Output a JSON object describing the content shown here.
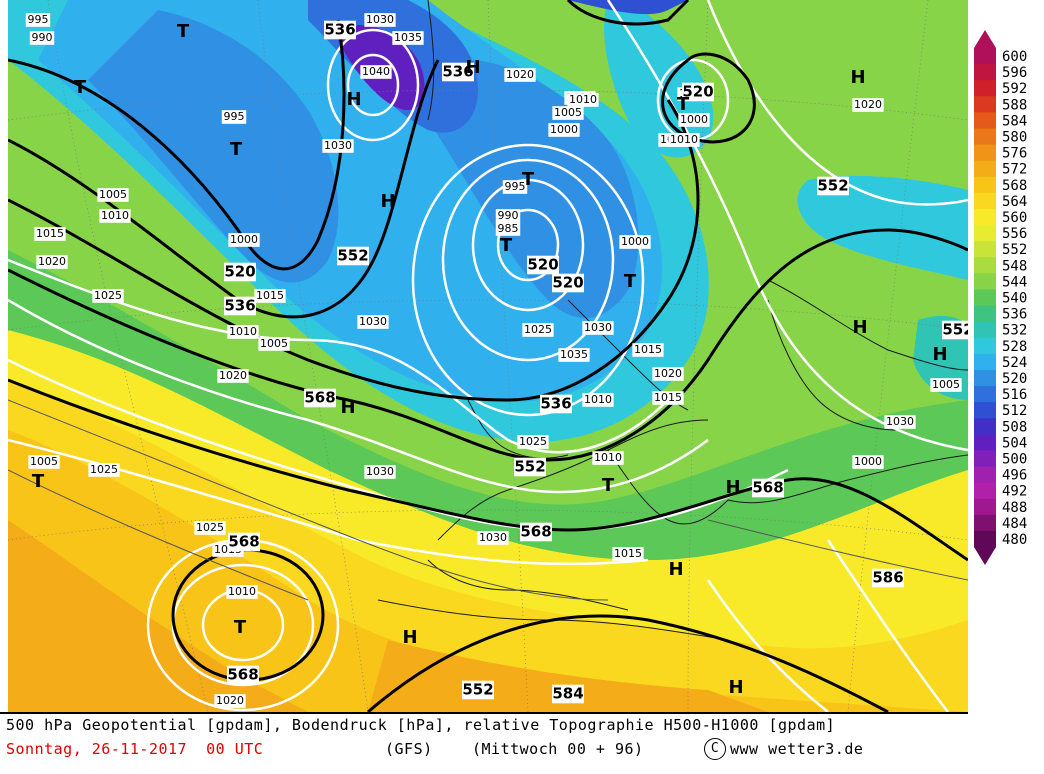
{
  "legend": {
    "values": [
      "600",
      "596",
      "592",
      "588",
      "584",
      "580",
      "576",
      "572",
      "568",
      "564",
      "560",
      "556",
      "552",
      "548",
      "544",
      "540",
      "536",
      "532",
      "528",
      "524",
      "520",
      "516",
      "512",
      "508",
      "504",
      "500",
      "496",
      "492",
      "488",
      "484",
      "480"
    ],
    "colors": [
      "#b0105a",
      "#c01540",
      "#d0202c",
      "#dc3a20",
      "#e55a1a",
      "#ea7818",
      "#ef9418",
      "#f4ac18",
      "#f8c418",
      "#fad820",
      "#f8ea28",
      "#e8ec30",
      "#c8e438",
      "#a8dc40",
      "#88d448",
      "#5cc858",
      "#3cc480",
      "#30c4b4",
      "#30c8dc",
      "#30b0ec",
      "#3090e4",
      "#3070dc",
      "#3050d4",
      "#4030c8",
      "#6020c0",
      "#8020b8",
      "#a020b0",
      "#b020a8",
      "#a01890",
      "#801070",
      "#600858"
    ]
  },
  "footer": {
    "line1": "500 hPa Geopotential [gpdam], Bodendruck [hPa], relative Topographie H500-H1000 [gpdam]",
    "date": "Sonntag, 26-11-2017  00 UTC",
    "model": "(GFS)",
    "forecast": "(Mittwoch 00 + 96)",
    "copyright_symbol": "C",
    "website": "www wetter3.de"
  },
  "map_labels": {
    "high_lows": [
      {
        "t": "T",
        "k": "low"
      },
      {
        "t": "T",
        "k": "low"
      },
      {
        "t": "T",
        "k": "low"
      },
      {
        "t": "H",
        "k": "high"
      },
      {
        "t": "H",
        "k": "high"
      },
      {
        "t": "H",
        "k": "high"
      },
      {
        "t": "T",
        "k": "low"
      },
      {
        "t": "T",
        "k": "low"
      },
      {
        "t": "T",
        "k": "low"
      },
      {
        "t": "T",
        "k": "low"
      },
      {
        "t": "H",
        "k": "high"
      },
      {
        "t": "H",
        "k": "high"
      },
      {
        "t": "H",
        "k": "high"
      },
      {
        "t": "H",
        "k": "high"
      },
      {
        "t": "H",
        "k": "high"
      },
      {
        "t": "T",
        "k": "low"
      },
      {
        "t": "T",
        "k": "low"
      },
      {
        "t": "T",
        "k": "low"
      },
      {
        "t": "H",
        "k": "high"
      },
      {
        "t": "H",
        "k": "high"
      },
      {
        "t": "H",
        "k": "high"
      },
      {
        "t": "T",
        "k": "low"
      }
    ],
    "geopotential": [
      "536",
      "536",
      "520",
      "536",
      "552",
      "520",
      "520",
      "520",
      "552",
      "568",
      "536",
      "552",
      "568",
      "568",
      "568",
      "568",
      "586",
      "584",
      "552",
      "552"
    ],
    "pressure": [
      "995",
      "990",
      "1030",
      "1035",
      "1040",
      "1020",
      "1010",
      "1005",
      "1000",
      "995",
      "990",
      "985",
      "1000",
      "995",
      "1030",
      "1000",
      "1005",
      "1010",
      "1005",
      "1010",
      "1015",
      "1020",
      "1025",
      "1015",
      "1030",
      "1025",
      "1030",
      "1035",
      "1015",
      "1020",
      "1015",
      "1010",
      "1005",
      "1010",
      "1020",
      "1025",
      "1005",
      "1030",
      "1010",
      "1015",
      "1020",
      "1005",
      "1010",
      "1015",
      "1025",
      "1030",
      "1030",
      "1000",
      "1005",
      "1000",
      "1010",
      "1020",
      "1025"
    ]
  }
}
